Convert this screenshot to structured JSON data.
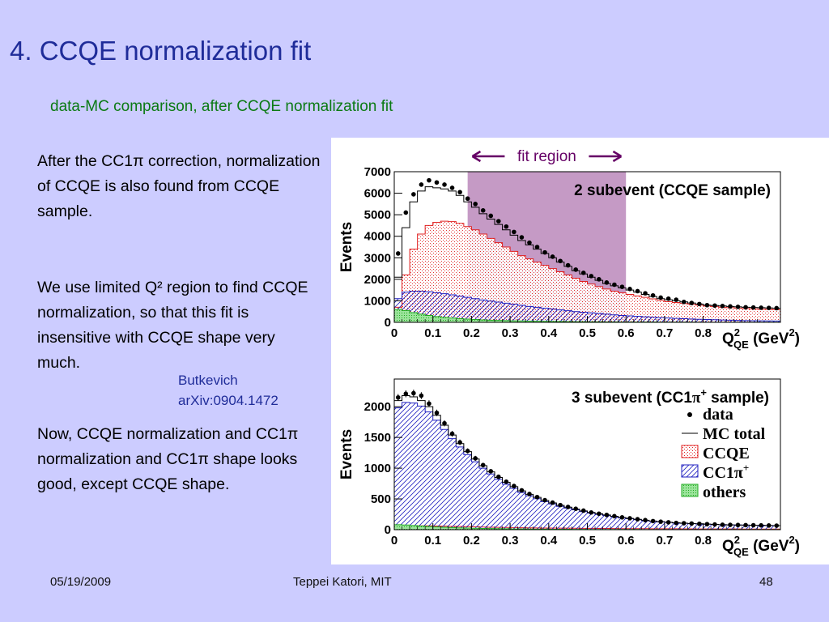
{
  "slide": {
    "title": "4. CCQE normalization fit",
    "subtitle": "data-MC comparison, after CCQE normalization fit",
    "paragraphs": [
      "After the CC1π correction, normalization of CCQE is also found from CCQE sample.",
      "We use limited Q² region to find CCQE normalization, so that this fit is insensitive with CCQE shape very much.",
      "Now, CCQE normalization and CC1π normalization and CC1π shape looks good, except CCQE shape."
    ],
    "citation": [
      "Butkevich",
      "arXiv:0904.1472"
    ],
    "footer": {
      "date": "05/19/2009",
      "author": "Teppei Katori, MIT",
      "page": "48"
    }
  },
  "colors": {
    "background": "#ccccff",
    "title": "#1f2c99",
    "subtitle": "#0b7a14",
    "ccqe": "#e02020",
    "cc1pi": "#2020c0",
    "others": "#22aa22",
    "fit_region": "#bb88bb",
    "fit_label": "#660066"
  },
  "chart_data": [
    {
      "type": "bar",
      "title": "2 subevent (CCQE sample)",
      "ylabel": "Events",
      "xlabel_main": "Q",
      "xlabel_sup": "2",
      "xlabel_sub": "QE",
      "xlabel_unit": "(GeV",
      "xlabel_unit_sup": "2",
      "xlabel_close": ")",
      "xlim": [
        0,
        1.0
      ],
      "ylim": [
        0,
        7000
      ],
      "xticks": [
        0,
        0.1,
        0.2,
        0.3,
        0.4,
        0.5,
        0.6,
        0.7,
        0.8
      ],
      "xtick_labels": [
        "0",
        "0.1",
        "0.2",
        "0.3",
        "0.4",
        "0.5",
        "0.6",
        "0.7",
        "0.8"
      ],
      "yticks": [
        0,
        1000,
        2000,
        3000,
        4000,
        5000,
        6000,
        7000
      ],
      "ytick_labels": [
        "0",
        "1000",
        "2000",
        "3000",
        "4000",
        "5000",
        "6000",
        "7000"
      ],
      "fit_region": {
        "range": [
          0.19,
          0.6
        ],
        "label": "fit region"
      },
      "bin_width": 0.02,
      "data": [
        3200,
        5100,
        5950,
        6400,
        6600,
        6500,
        6400,
        6250,
        6050,
        5750,
        5500,
        5200,
        4950,
        4700,
        4450,
        4200,
        3950,
        3700,
        3500,
        3250,
        3050,
        2850,
        2650,
        2450,
        2300,
        2150,
        2000,
        1850,
        1750,
        1650,
        1550,
        1450,
        1350,
        1250,
        1150,
        1100,
        1050,
        950,
        900,
        850,
        800,
        780,
        760,
        740,
        720,
        700,
        690,
        680,
        670,
        660
      ],
      "mc_total": [
        2100,
        4400,
        5600,
        6100,
        6300,
        6250,
        6200,
        6100,
        5900,
        5600,
        5350,
        5050,
        4800,
        4550,
        4300,
        4050,
        3800,
        3600,
        3400,
        3200,
        3000,
        2800,
        2600,
        2400,
        2250,
        2100,
        1950,
        1800,
        1700,
        1600,
        1500,
        1400,
        1300,
        1200,
        1100,
        1050,
        1000,
        950,
        900,
        850,
        800,
        780,
        760,
        740,
        720,
        700,
        690,
        680,
        670,
        660
      ],
      "ccqe": [
        700,
        2200,
        3400,
        4100,
        4500,
        4650,
        4700,
        4680,
        4600,
        4450,
        4300,
        4100,
        3900,
        3700,
        3500,
        3300,
        3100,
        2950,
        2800,
        2650,
        2500,
        2350,
        2200,
        2050,
        1900,
        1780,
        1660,
        1550,
        1450,
        1380,
        1300,
        1230,
        1160,
        1090,
        1020,
        960,
        920,
        880,
        840,
        800,
        760,
        730,
        700,
        680,
        660,
        640,
        620,
        610,
        600,
        590
      ],
      "cc1pi": [
        1100,
        1400,
        1450,
        1450,
        1420,
        1380,
        1330,
        1280,
        1220,
        1160,
        1100,
        1040,
        990,
        940,
        890,
        840,
        790,
        740,
        700,
        660,
        620,
        580,
        540,
        500,
        470,
        440,
        410,
        380,
        350,
        320,
        300,
        280,
        260,
        240,
        220,
        200,
        185,
        170,
        155,
        140,
        130,
        120,
        110,
        100,
        90,
        80,
        75,
        70,
        65,
        60
      ],
      "others": [
        600,
        550,
        450,
        380,
        320,
        270,
        230,
        200,
        170,
        150,
        130,
        115,
        100,
        90,
        80,
        72,
        65,
        58,
        52,
        46,
        41,
        37,
        33,
        30,
        27,
        24,
        22,
        20,
        18,
        16,
        15,
        14,
        13,
        12,
        11,
        10,
        9,
        8,
        8,
        7,
        7,
        6,
        6,
        5,
        5,
        5,
        4,
        4,
        4,
        4
      ]
    },
    {
      "type": "bar",
      "title_main": "3 subevent (CC1",
      "title_pi": "π",
      "title_sup": "+",
      "title_end": " sample)",
      "ylabel": "Events",
      "xlabel_main": "Q",
      "xlabel_sup": "2",
      "xlabel_sub": "QE",
      "xlabel_unit": "(GeV",
      "xlabel_unit_sup": "2",
      "xlabel_close": ")",
      "xlim": [
        0,
        1.0
      ],
      "ylim": [
        0,
        2450
      ],
      "xticks": [
        0,
        0.1,
        0.2,
        0.3,
        0.4,
        0.5,
        0.6,
        0.7,
        0.8
      ],
      "xtick_labels": [
        "0",
        "0.1",
        "0.2",
        "0.3",
        "0.4",
        "0.5",
        "0.6",
        "0.7",
        "0.8"
      ],
      "yticks": [
        0,
        500,
        1000,
        1500,
        2000
      ],
      "ytick_labels": [
        "0",
        "500",
        "1000",
        "1500",
        "2000"
      ],
      "legend": {
        "placement": "right",
        "data": "data",
        "mc_total": "MC total",
        "ccqe": "CCQE",
        "cc1pi_main": "CC1",
        "cc1pi_pi": "π",
        "cc1pi_sup": "+",
        "others": "others"
      },
      "bin_width": 0.02,
      "data": [
        2150,
        2210,
        2220,
        2180,
        2050,
        1900,
        1730,
        1560,
        1420,
        1280,
        1160,
        1050,
        950,
        860,
        780,
        710,
        640,
        580,
        530,
        480,
        440,
        400,
        370,
        340,
        310,
        280,
        260,
        240,
        220,
        200,
        185,
        170,
        155,
        140,
        130,
        120,
        110,
        105,
        100,
        95,
        90,
        85,
        80,
        78,
        76,
        74,
        72,
        70,
        68,
        66
      ],
      "mc_total": [
        2100,
        2180,
        2160,
        2100,
        2000,
        1860,
        1700,
        1540,
        1400,
        1270,
        1150,
        1040,
        940,
        850,
        770,
        700,
        630,
        575,
        525,
        475,
        435,
        395,
        365,
        335,
        305,
        280,
        258,
        238,
        218,
        198,
        183,
        168,
        153,
        140,
        130,
        120,
        112,
        105,
        100,
        95,
        90,
        85,
        80,
        78,
        76,
        74,
        72,
        70,
        68,
        66
      ],
      "ccqe": [
        40,
        55,
        60,
        62,
        62,
        60,
        58,
        55,
        52,
        49,
        46,
        43,
        40,
        38,
        36,
        34,
        32,
        30,
        28,
        27,
        26,
        25,
        24,
        23,
        22,
        21,
        20,
        19,
        18,
        17,
        17,
        16,
        16,
        15,
        15,
        14,
        14,
        13,
        13,
        12,
        12,
        12,
        11,
        11,
        11,
        10,
        10,
        10,
        10,
        10
      ],
      "cc1pi": [
        1980,
        2070,
        2060,
        2010,
        1915,
        1780,
        1630,
        1480,
        1345,
        1220,
        1105,
        1000,
        905,
        818,
        740,
        672,
        604,
        552,
        504,
        456,
        418,
        379,
        350,
        322,
        293,
        270,
        249,
        230,
        211,
        192,
        177,
        163,
        148,
        136,
        126,
        117,
        109,
        103,
        98,
        94,
        89,
        84,
        80,
        78,
        76,
        74,
        72,
        70,
        68,
        66
      ],
      "others": [
        80,
        75,
        68,
        60,
        52,
        45,
        39,
        34,
        30,
        26,
        23,
        20,
        18,
        16,
        14,
        12,
        11,
        10,
        9,
        8,
        7,
        6,
        6,
        5,
        5,
        4,
        4,
        4,
        3,
        3,
        3,
        3,
        2,
        2,
        2,
        2,
        2,
        2,
        1,
        1,
        1,
        1,
        1,
        1,
        1,
        1,
        1,
        1,
        1,
        1
      ]
    }
  ]
}
